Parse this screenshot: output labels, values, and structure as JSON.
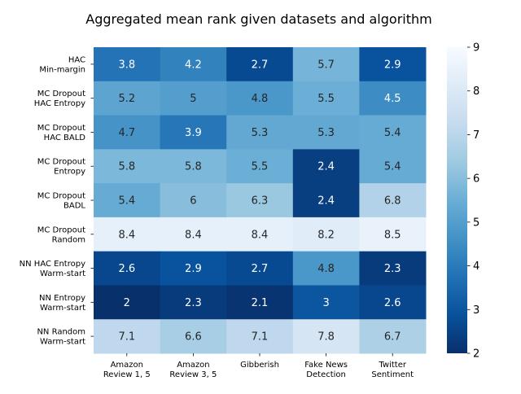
{
  "chart_data": {
    "type": "heatmap",
    "title": "Aggregated mean rank given datasets and algorithm",
    "rows": [
      [
        "HAC",
        "Min-margin"
      ],
      [
        "MC Dropout",
        "HAC Entropy"
      ],
      [
        "MC Dropout",
        "HAC BALD"
      ],
      [
        "MC Dropout",
        "Entropy"
      ],
      [
        "MC Dropout",
        "BADL"
      ],
      [
        "MC Dropout",
        "Random"
      ],
      [
        "NN HAC Entropy",
        "Warm-start"
      ],
      [
        "NN Entropy",
        "Warm-start"
      ],
      [
        "NN Random",
        "Warm-start"
      ]
    ],
    "columns": [
      [
        "Amazon",
        "Review 1, 5"
      ],
      [
        "Amazon",
        "Review 3, 5"
      ],
      [
        "Gibberish"
      ],
      [
        "Fake News",
        "Detection"
      ],
      [
        "Twitter",
        "Sentiment"
      ]
    ],
    "values": [
      [
        3.8,
        4.2,
        2.7,
        5.7,
        2.9
      ],
      [
        5.2,
        5,
        4.8,
        5.5,
        4.5
      ],
      [
        4.7,
        3.9,
        5.3,
        5.3,
        5.4
      ],
      [
        5.8,
        5.8,
        5.5,
        2.4,
        5.4
      ],
      [
        5.4,
        6,
        6.3,
        2.4,
        6.8
      ],
      [
        8.4,
        8.4,
        8.4,
        8.2,
        8.5
      ],
      [
        2.6,
        2.9,
        2.7,
        4.8,
        2.3
      ],
      [
        2,
        2.3,
        2.1,
        3,
        2.6
      ],
      [
        7.1,
        6.6,
        7.1,
        7.8,
        6.7
      ]
    ],
    "colorbar": {
      "min": 2,
      "max": 9,
      "ticks": [
        2,
        3,
        4,
        5,
        6,
        7,
        8,
        9
      ]
    },
    "colormap": "Blues_r",
    "colors": [
      "#08306b",
      "#08519c",
      "#2171b5",
      "#4292c6",
      "#6baed6",
      "#9ecae1",
      "#c6dbef",
      "#deebf7",
      "#f7fbff"
    ]
  }
}
